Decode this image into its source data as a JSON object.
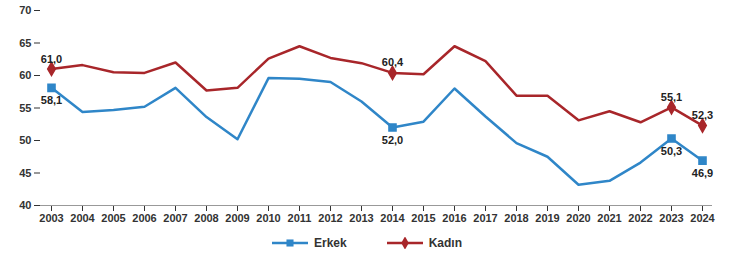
{
  "chart_data": {
    "type": "line",
    "categories": [
      "2003",
      "2004",
      "2005",
      "2006",
      "2007",
      "2008",
      "2009",
      "2010",
      "2011",
      "2012",
      "2013",
      "2014",
      "2015",
      "2016",
      "2017",
      "2018",
      "2019",
      "2020",
      "2021",
      "2022",
      "2023",
      "2024"
    ],
    "series": [
      {
        "name": "Erkek",
        "color": "#2f86c8",
        "marker": "square",
        "values": [
          58.1,
          54.4,
          54.7,
          55.2,
          58.1,
          53.6,
          50.2,
          59.6,
          59.5,
          59.0,
          56.0,
          52.0,
          52.9,
          58.0,
          53.7,
          49.6,
          47.5,
          43.2,
          43.8,
          46.6,
          50.3,
          46.9
        ],
        "value_labels": [
          "58,1",
          null,
          null,
          null,
          null,
          null,
          null,
          null,
          null,
          null,
          null,
          "52,0",
          null,
          null,
          null,
          null,
          null,
          null,
          null,
          null,
          "50,3",
          "46,9"
        ]
      },
      {
        "name": "Kadın",
        "color": "#a8262a",
        "marker": "diamond",
        "values": [
          61.0,
          61.6,
          60.5,
          60.4,
          62.0,
          57.7,
          58.1,
          62.6,
          64.5,
          62.7,
          61.9,
          60.4,
          60.2,
          64.5,
          62.2,
          56.9,
          56.9,
          53.1,
          54.5,
          52.8,
          55.1,
          52.3
        ],
        "value_labels": [
          "61,0",
          null,
          null,
          null,
          null,
          null,
          null,
          null,
          null,
          null,
          null,
          "60,4",
          null,
          null,
          null,
          null,
          null,
          null,
          null,
          null,
          "55,1",
          "52,3"
        ]
      }
    ],
    "ylim": [
      40,
      70
    ],
    "yticks": [
      40,
      45,
      50,
      55,
      60,
      65,
      70
    ],
    "grid": false,
    "data_labels": true,
    "legend": "bottom"
  }
}
